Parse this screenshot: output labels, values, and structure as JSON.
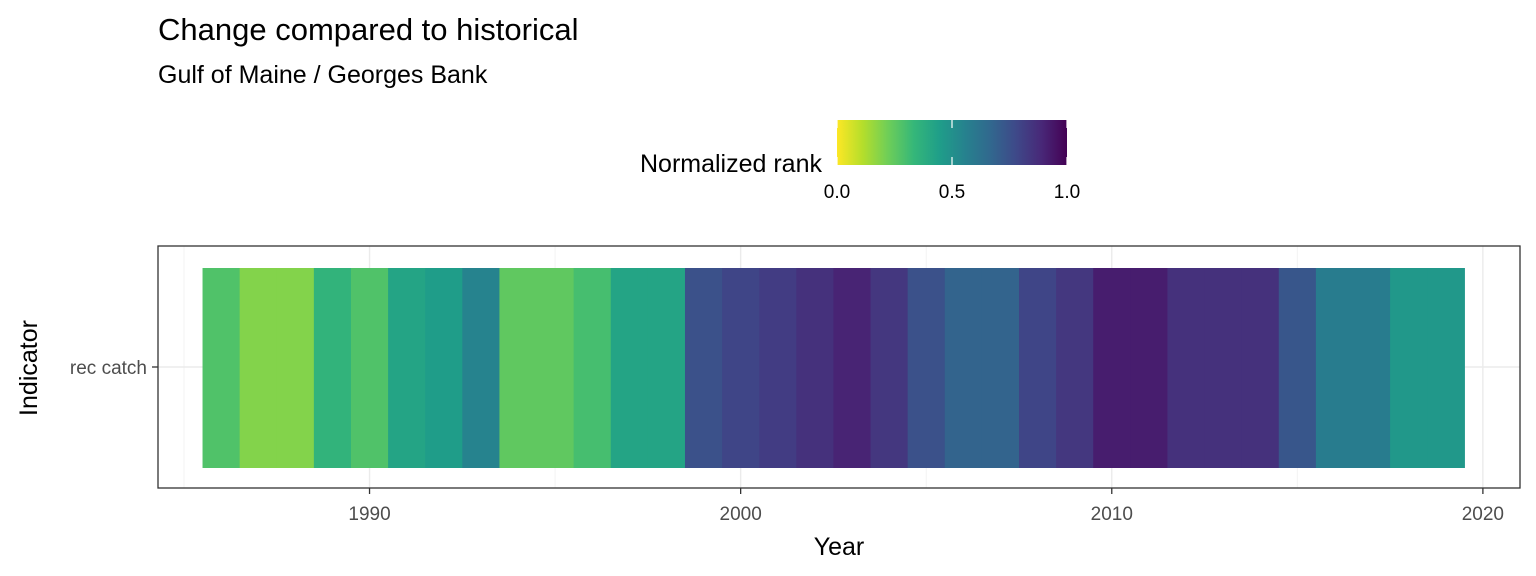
{
  "chart_data": {
    "type": "heatmap",
    "title": "Change compared to historical",
    "subtitle": "Gulf of Maine / Georges Bank",
    "xlabel": "Year",
    "ylabel": "Indicator",
    "y_categories": [
      "rec catch"
    ],
    "xlim": [
      1984.3,
      2021.0
    ],
    "x_ticks": [
      1990,
      2000,
      2010,
      2020
    ],
    "grid": true,
    "legend": {
      "title": "Normalized rank",
      "position": "top",
      "range": [
        0,
        1
      ],
      "ticks": [
        "0.0",
        "0.5",
        "1.0"
      ]
    },
    "colormap": [
      "#fde725",
      "#b5de2b",
      "#6ece58",
      "#35b779",
      "#1f9e89",
      "#26828e",
      "#31688e",
      "#3e4989",
      "#482878",
      "#440154"
    ],
    "years": [
      1986,
      1987,
      1988,
      1989,
      1990,
      1991,
      1992,
      1993,
      1994,
      1995,
      1996,
      1997,
      1998,
      1999,
      2000,
      2001,
      2002,
      2003,
      2004,
      2005,
      2006,
      2007,
      2008,
      2009,
      2010,
      2011,
      2012,
      2013,
      2014,
      2015,
      2016,
      2017,
      2018,
      2019
    ],
    "values": [
      0.28,
      0.19,
      0.19,
      0.35,
      0.28,
      0.42,
      0.45,
      0.55,
      0.25,
      0.25,
      0.3,
      0.42,
      0.42,
      0.75,
      0.79,
      0.82,
      0.86,
      0.9,
      0.84,
      0.75,
      0.68,
      0.68,
      0.79,
      0.84,
      0.92,
      0.92,
      0.86,
      0.86,
      0.86,
      0.73,
      0.58,
      0.58,
      0.47,
      0.47
    ]
  }
}
